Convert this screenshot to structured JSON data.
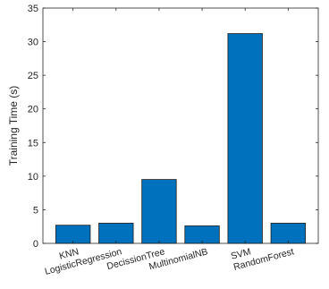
{
  "chart_data": {
    "type": "bar",
    "title": "",
    "xlabel": "",
    "ylabel": "Training Time (s)",
    "categories": [
      "KNN",
      "LogisticRegression",
      "DecissionTree",
      "MultinomialNB",
      "SVM",
      "RandomForest"
    ],
    "values": [
      2.7,
      3.0,
      9.5,
      2.6,
      31.2,
      3.0
    ],
    "ylim": [
      0,
      35
    ],
    "yticks": [
      "0",
      "5",
      "10",
      "15",
      "20",
      "25",
      "30",
      "35"
    ],
    "grid": false,
    "legend": "none",
    "bar_color": "#0072BD",
    "edge_color": "#1a1a1a"
  }
}
